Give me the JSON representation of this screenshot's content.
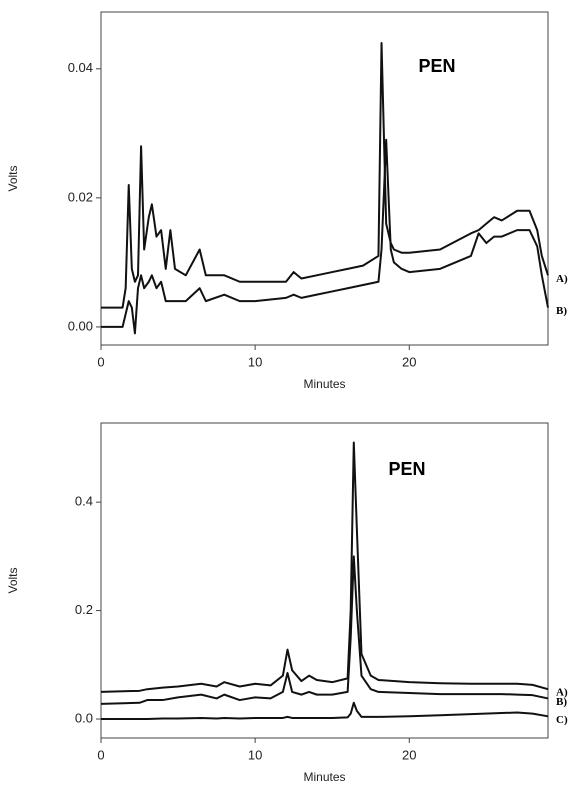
{
  "chart_data": [
    {
      "type": "line",
      "annotation": "PEN",
      "xlabel": "Minutes",
      "ylabel": "Volts",
      "xlim": [
        0,
        29
      ],
      "xticks": [
        0,
        10,
        20
      ],
      "ylim": [
        -0.0028,
        0.0488
      ],
      "yticks": [
        {
          "value": 0,
          "label": "0.00"
        },
        {
          "value": 0.02,
          "label": "0.02"
        },
        {
          "value": 0.04,
          "label": "0.04"
        }
      ],
      "x": [
        0,
        1.4,
        1.6,
        1.8,
        2.0,
        2.2,
        2.4,
        2.6,
        2.8,
        3.1,
        3.3,
        3.6,
        3.9,
        4.2,
        4.5,
        4.8,
        5.5,
        6.4,
        6.8,
        8,
        9,
        10,
        12,
        12.5,
        13,
        14,
        15,
        16,
        17,
        18,
        18.2,
        18.5,
        18.8,
        19,
        19.5,
        20,
        22,
        24,
        24.5,
        25,
        25.5,
        26,
        27,
        27.8,
        28.3,
        28.6,
        29
      ],
      "series": [
        {
          "name": "A)",
          "color": "#111111",
          "values": [
            0.003,
            0.003,
            0.006,
            0.022,
            0.009,
            0.007,
            0.008,
            0.028,
            0.012,
            0.017,
            0.019,
            0.014,
            0.015,
            0.009,
            0.015,
            0.009,
            0.008,
            0.012,
            0.008,
            0.008,
            0.007,
            0.007,
            0.007,
            0.0085,
            0.0075,
            0.008,
            0.0085,
            0.009,
            0.0095,
            0.011,
            0.044,
            0.016,
            0.013,
            0.012,
            0.0115,
            0.0115,
            0.012,
            0.0145,
            0.015,
            0.016,
            0.017,
            0.0165,
            0.018,
            0.018,
            0.015,
            0.011,
            0.008
          ]
        },
        {
          "name": "B)",
          "color": "#111111",
          "values": [
            0,
            0,
            0.002,
            0.004,
            0.003,
            -0.001,
            0.006,
            0.008,
            0.006,
            0.007,
            0.008,
            0.006,
            0.007,
            0.004,
            0.004,
            0.004,
            0.004,
            0.006,
            0.004,
            0.005,
            0.004,
            0.004,
            0.0045,
            0.005,
            0.0045,
            0.005,
            0.0055,
            0.006,
            0.0065,
            0.007,
            0.012,
            0.029,
            0.012,
            0.01,
            0.009,
            0.0085,
            0.009,
            0.011,
            0.0145,
            0.013,
            0.014,
            0.014,
            0.015,
            0.015,
            0.0125,
            0.008,
            0.003
          ]
        }
      ]
    },
    {
      "type": "line",
      "annotation": "PEN",
      "xlabel": "Minutes",
      "ylabel": "Volts",
      "xlim": [
        0,
        29
      ],
      "xticks": [
        0,
        10,
        20
      ],
      "ylim": [
        -0.035,
        0.546
      ],
      "yticks": [
        {
          "value": 0,
          "label": "0.0"
        },
        0.2,
        0.4
      ],
      "x": [
        0,
        2.5,
        3,
        4,
        5,
        6.5,
        7.5,
        8,
        9,
        10,
        11,
        11.8,
        12.1,
        12.4,
        13,
        13.5,
        14,
        15,
        16,
        16.2,
        16.4,
        16.6,
        16.9,
        17.5,
        18,
        20,
        22,
        24,
        26,
        27,
        28,
        29
      ],
      "series": [
        {
          "name": "A)",
          "color": "#111111",
          "values": [
            0.05,
            0.052,
            0.055,
            0.058,
            0.06,
            0.065,
            0.06,
            0.068,
            0.06,
            0.065,
            0.062,
            0.08,
            0.128,
            0.09,
            0.07,
            0.08,
            0.072,
            0.068,
            0.075,
            0.2,
            0.51,
            0.35,
            0.12,
            0.08,
            0.072,
            0.068,
            0.066,
            0.065,
            0.065,
            0.065,
            0.063,
            0.055
          ]
        },
        {
          "name": "B)",
          "color": "#111111",
          "values": [
            0.028,
            0.03,
            0.035,
            0.035,
            0.04,
            0.045,
            0.038,
            0.045,
            0.035,
            0.04,
            0.038,
            0.05,
            0.085,
            0.05,
            0.045,
            0.05,
            0.045,
            0.045,
            0.05,
            0.15,
            0.3,
            0.2,
            0.08,
            0.055,
            0.05,
            0.048,
            0.046,
            0.046,
            0.046,
            0.045,
            0.044,
            0.038
          ]
        },
        {
          "name": "C)",
          "color": "#111111",
          "values": [
            0,
            0,
            0,
            0.001,
            0.001,
            0.002,
            0.001,
            0.002,
            0.001,
            0.002,
            0.002,
            0.002,
            0.004,
            0.002,
            0.002,
            0.002,
            0.002,
            0.002,
            0.003,
            0.01,
            0.03,
            0.015,
            0.004,
            0.004,
            0.004,
            0.005,
            0.007,
            0.009,
            0.011,
            0.012,
            0.01,
            0.005
          ]
        }
      ]
    }
  ]
}
